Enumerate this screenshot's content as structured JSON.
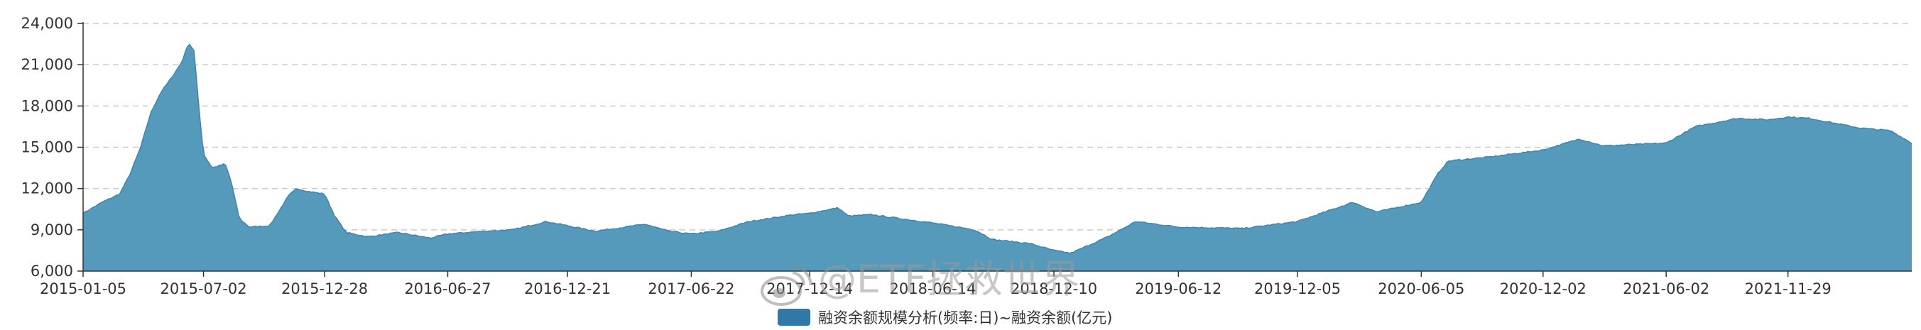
{
  "chart_data": {
    "type": "area",
    "title": "",
    "xlabel": "",
    "ylabel": "",
    "ylim": [
      6000,
      24000
    ],
    "y_ticks": [
      "6,000",
      "9,000",
      "12,000",
      "15,000",
      "18,000",
      "21,000",
      "24,000"
    ],
    "x_ticks": [
      "2015-01-05",
      "2015-07-02",
      "2015-12-28",
      "2016-06-27",
      "2016-12-21",
      "2017-06-22",
      "2017-12-14",
      "2018-06-14",
      "2018-12-10",
      "2019-06-12",
      "2019-12-05",
      "2020-06-05",
      "2020-12-02",
      "2021-06-02",
      "2021-11-29"
    ],
    "x_range": [
      "2015-01-05",
      "2022-05-31"
    ],
    "grid": "horizontal dashed",
    "legend_position": "bottom-center",
    "series_color": "#5599bb",
    "series": [
      {
        "name": "融资余额规模分析(频率:日)~融资余额(亿元)",
        "x": [
          "2015-01-05",
          "2015-02-02",
          "2015-02-28",
          "2015-03-15",
          "2015-03-31",
          "2015-04-15",
          "2015-04-30",
          "2015-05-15",
          "2015-05-31",
          "2015-06-10",
          "2015-06-18",
          "2015-06-25",
          "2015-07-02",
          "2015-07-15",
          "2015-08-03",
          "2015-08-12",
          "2015-08-24",
          "2015-09-08",
          "2015-10-08",
          "2015-11-05",
          "2015-11-17",
          "2015-12-03",
          "2015-12-28",
          "2016-01-12",
          "2016-01-29",
          "2016-03-01",
          "2016-04-15",
          "2016-06-01",
          "2016-06-27",
          "2016-08-20",
          "2016-10-01",
          "2016-11-20",
          "2016-12-21",
          "2017-01-31",
          "2017-03-01",
          "2017-04-15",
          "2017-05-20",
          "2017-06-22",
          "2017-08-01",
          "2017-09-15",
          "2017-11-20",
          "2017-12-14",
          "2018-01-25",
          "2018-02-09",
          "2018-03-15",
          "2018-06-14",
          "2018-08-15",
          "2018-09-10",
          "2018-11-05",
          "2018-12-10",
          "2019-01-04",
          "2019-02-28",
          "2019-04-10",
          "2019-06-12",
          "2019-09-15",
          "2019-12-05",
          "2020-01-15",
          "2020-02-25",
          "2020-03-31",
          "2020-06-05",
          "2020-07-01",
          "2020-07-15",
          "2020-09-15",
          "2020-12-02",
          "2021-01-25",
          "2021-03-01",
          "2021-06-02",
          "2021-07-15",
          "2021-09-15",
          "2021-10-31",
          "2021-11-29",
          "2021-12-31",
          "2022-03-15",
          "2022-04-30",
          "2022-05-31"
        ],
        "values": [
          10200,
          11000,
          11600,
          13000,
          15000,
          17500,
          19000,
          20000,
          21200,
          22600,
          22000,
          18000,
          14500,
          13500,
          13800,
          12500,
          9800,
          9200,
          9300,
          11500,
          12000,
          11800,
          11600,
          10000,
          8800,
          8500,
          8800,
          8400,
          8700,
          8900,
          9000,
          9600,
          9300,
          8900,
          9100,
          9400,
          8900,
          8700,
          8900,
          9600,
          10100,
          10200,
          10600,
          10000,
          10100,
          9500,
          9000,
          8300,
          8000,
          7500,
          7300,
          8500,
          9600,
          9200,
          9100,
          9600,
          10300,
          11000,
          10300,
          11000,
          13200,
          14000,
          14300,
          14800,
          15600,
          15100,
          15300,
          16500,
          17100,
          17000,
          17200,
          17100,
          16400,
          16200,
          15300
        ]
      }
    ]
  },
  "watermark": {
    "text": "@ETF拯救世界",
    "icon": "weibo-logo-icon"
  }
}
